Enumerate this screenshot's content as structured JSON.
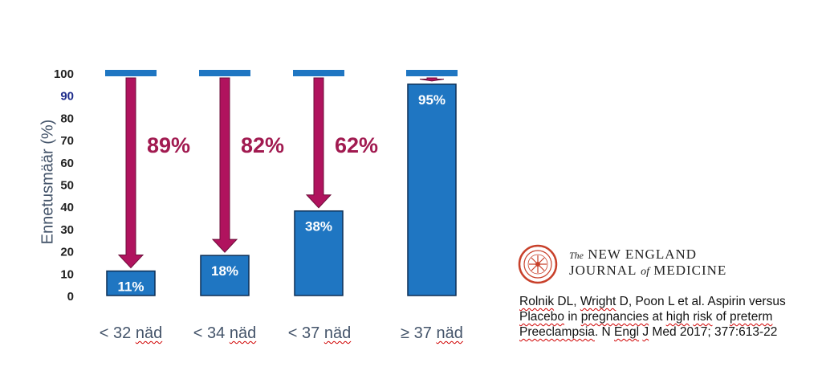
{
  "chart_data": {
    "type": "bar",
    "title": "",
    "ylabel": "Ennetusmäär (%)",
    "xlabel": "",
    "ylim": [
      0,
      100
    ],
    "yticks": [
      0,
      10,
      20,
      30,
      40,
      50,
      60,
      70,
      80,
      90,
      100
    ],
    "categories": [
      "< 32 näd",
      "< 34 näd",
      "< 37 näd",
      "≥ 37 näd"
    ],
    "values": [
      11,
      18,
      38,
      95
    ],
    "bar_labels": [
      "11%",
      "18%",
      "38%",
      "95%"
    ],
    "reduction_labels": [
      "89%",
      "82%",
      "62%",
      ""
    ],
    "baseline": 100,
    "grid": false,
    "colors": {
      "bar": "#1f76c2",
      "bar_border": "#0d2f55",
      "arrow": "#b0135e",
      "arrow_label": "#a11a50",
      "tick90": "#1f2d8c"
    }
  },
  "publication": {
    "journal_the": "The",
    "journal_name_1": "NEW ENGLAND",
    "journal_name_2a": "JOURNAL",
    "journal_of": "of",
    "journal_name_2b": "MEDICINE",
    "citation_parts": [
      "Rolnik",
      " DL, ",
      "Wright",
      " D, Poon L et al. Aspirin versus ",
      "Placebo",
      " in ",
      "pregnancies",
      " at ",
      "high",
      " ",
      "risk",
      " of ",
      "preterm",
      " ",
      "Preeclampsia",
      ". N ",
      "Engl",
      " ",
      "J",
      " Med 2017; 377:613-22"
    ]
  }
}
